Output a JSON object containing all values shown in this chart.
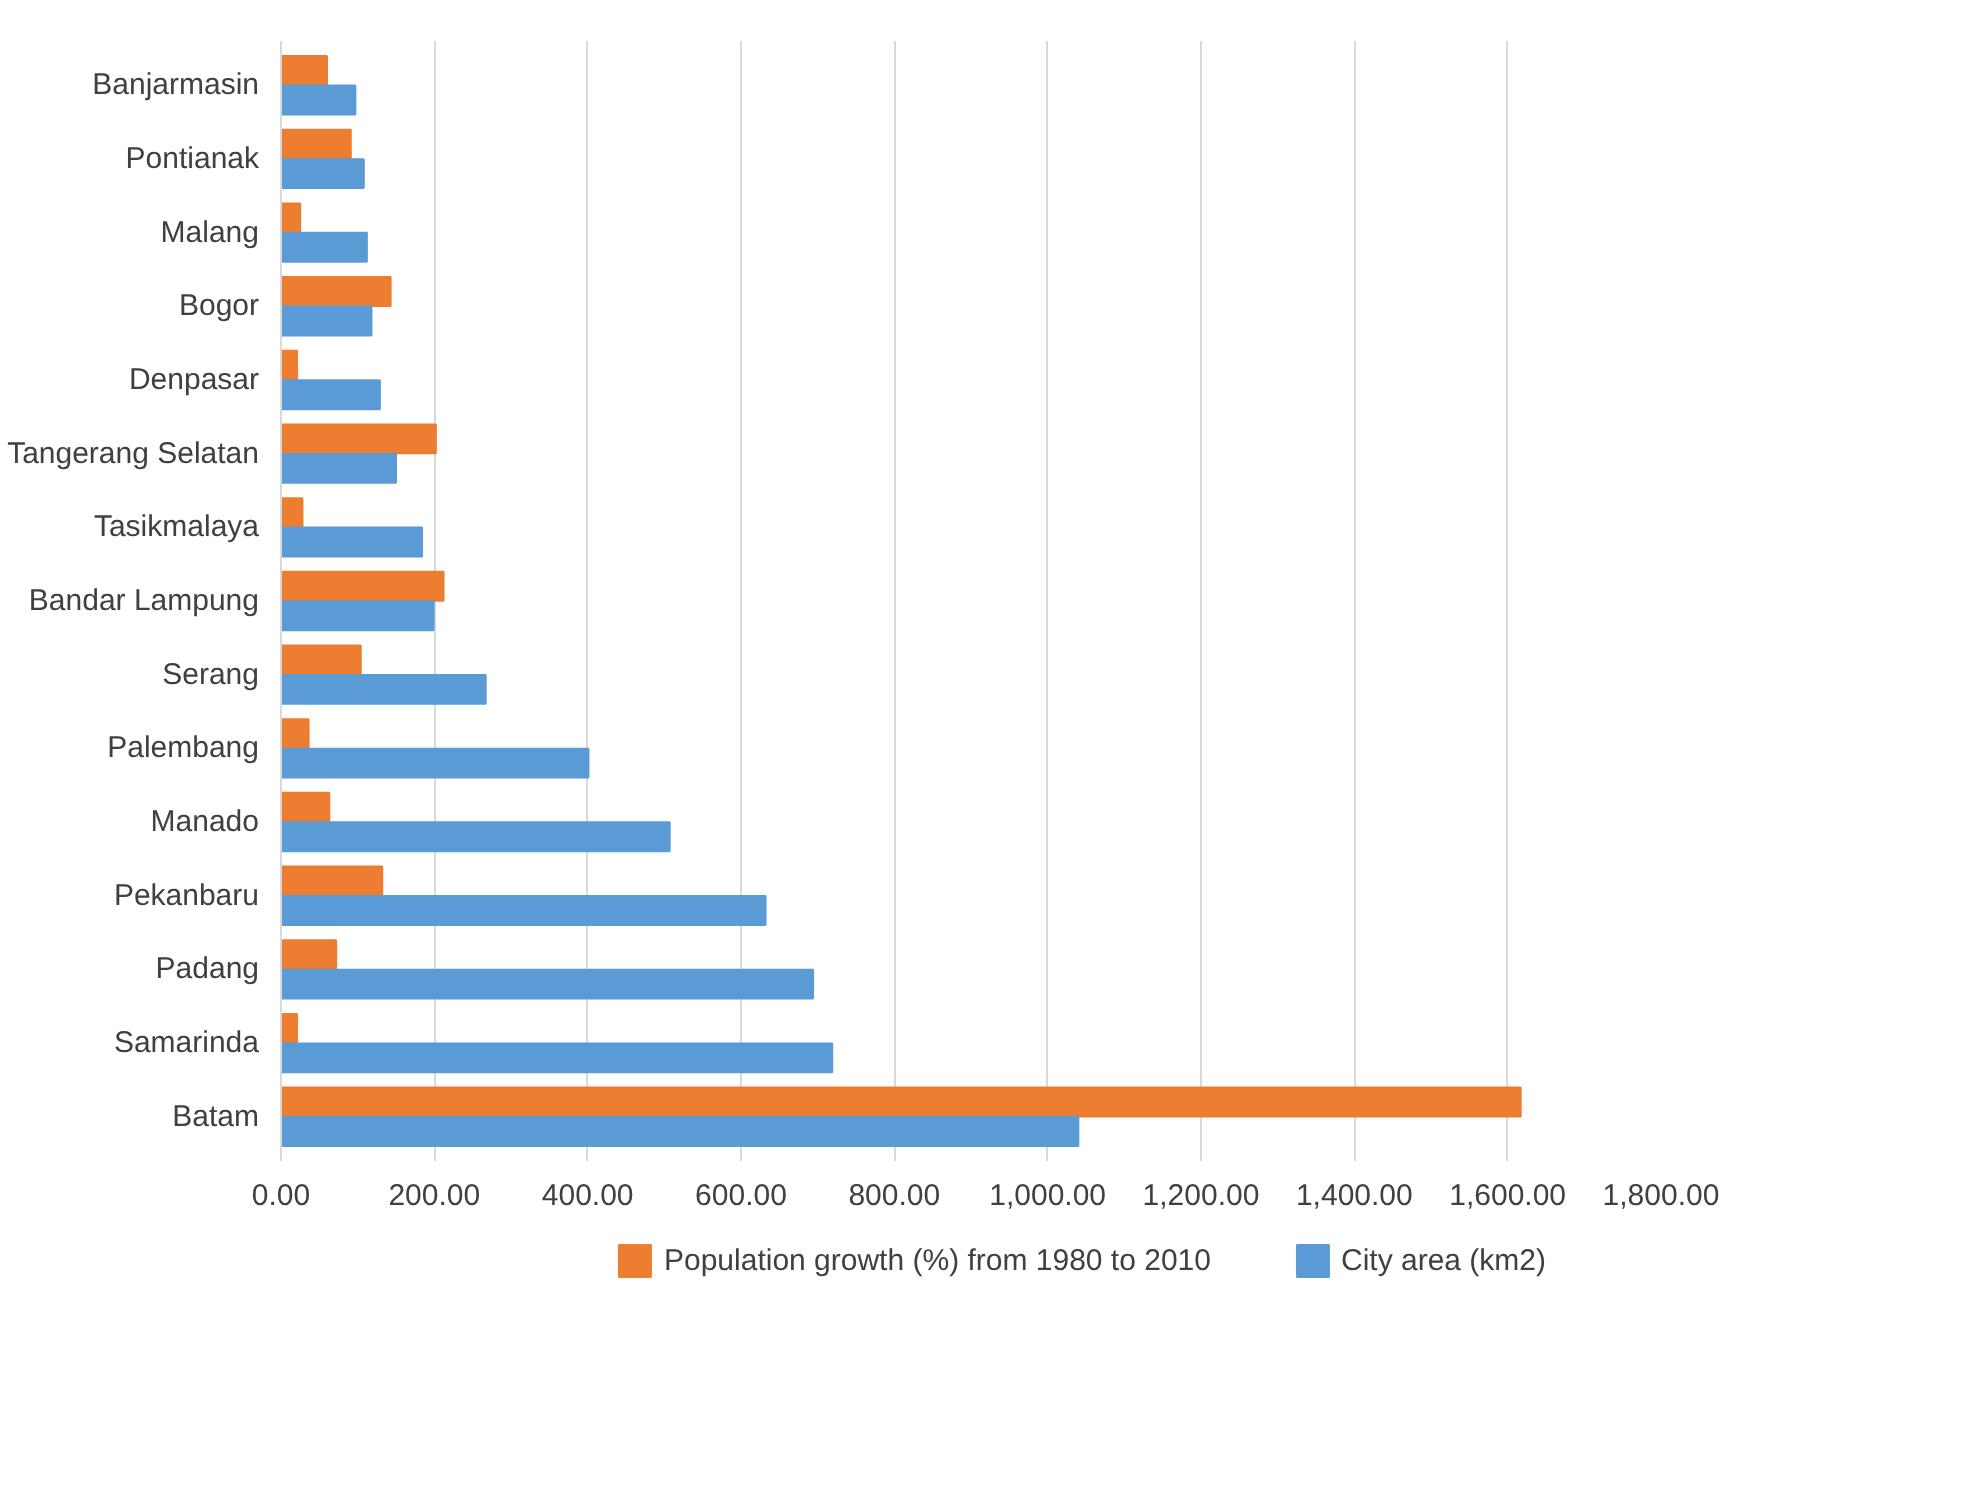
{
  "chart_data": {
    "type": "bar",
    "orientation": "horizontal",
    "categories": [
      "Banjarmasin",
      "Pontianak",
      "Malang",
      "Bogor",
      "Denpasar",
      "Tangerang Selatan",
      "Tasikmalaya",
      "Bandar Lampung",
      "Serang",
      "Palembang",
      "Manado",
      "Pekanbaru",
      "Padang",
      "Samarinda",
      "Batam"
    ],
    "series": [
      {
        "name": "Population growth (%) from 1980 to 2010",
        "color": "#ed7d31",
        "values": [
          60,
          91,
          25,
          143,
          21,
          202,
          28,
          212,
          104,
          36,
          63,
          132,
          72,
          21,
          1617
        ]
      },
      {
        "name": "City area (km2)",
        "color": "#5b9bd5",
        "values": [
          97,
          108,
          112,
          118,
          129,
          150,
          184,
          199,
          267,
          401,
          507,
          632,
          694,
          719,
          1040
        ]
      }
    ],
    "xlim": [
      0,
      1800
    ],
    "xticks": [
      {
        "value": 0,
        "label": "0.00"
      },
      {
        "value": 200,
        "label": "200.00"
      },
      {
        "value": 400,
        "label": "400.00"
      },
      {
        "value": 600,
        "label": "600.00"
      },
      {
        "value": 800,
        "label": "800.00"
      },
      {
        "value": 1000,
        "label": "1,000.00"
      },
      {
        "value": 1200,
        "label": "1,200.00"
      },
      {
        "value": 1400,
        "label": "1,400.00"
      },
      {
        "value": 1600,
        "label": "1,600.00"
      },
      {
        "value": 1800,
        "label": "1,800.00"
      }
    ],
    "grid": "x",
    "legend": "bottom"
  }
}
